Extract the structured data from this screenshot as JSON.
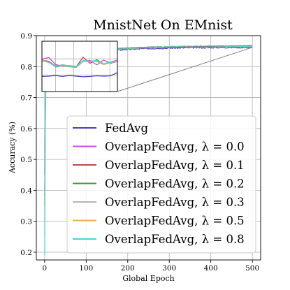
{
  "chart_data": {
    "type": "line",
    "title": "MnistNet On EMnist",
    "xlabel": "Global Epoch",
    "ylabel": "Accuracy (%)",
    "xlim": [
      -20,
      520
    ],
    "ylim": [
      0.175,
      0.9
    ],
    "xticks": [
      0,
      100,
      200,
      300,
      400,
      500
    ],
    "yticks": [
      0.2,
      0.3,
      0.4,
      0.5,
      0.6,
      0.7,
      0.8,
      0.9
    ],
    "grid": true,
    "legend_position": "lower-right",
    "series": [
      {
        "name": "FedAvg",
        "color": "#4b3fb8",
        "start": 0.45,
        "final": 0.862
      },
      {
        "name": "OverlapFedAvg, λ = 0.0",
        "color": "#c050e8",
        "start": 0.4,
        "final": 0.866
      },
      {
        "name": "OverlapFedAvg, λ = 0.1",
        "color": "#b84a48",
        "start": 0.38,
        "final": 0.866
      },
      {
        "name": "OverlapFedAvg, λ = 0.2",
        "color": "#3f9a3f",
        "start": 0.35,
        "final": 0.866
      },
      {
        "name": "OverlapFedAvg, λ = 0.3",
        "color": "#b5b5b5",
        "start": 0.3,
        "final": 0.866
      },
      {
        "name": "OverlapFedAvg, λ = 0.5",
        "color": "#f0b050",
        "start": 0.25,
        "final": 0.866
      },
      {
        "name": "OverlapFedAvg, λ = 0.8",
        "color": "#40d8d8",
        "start": 0.19,
        "final": 0.866
      }
    ],
    "inset": {
      "xlim": [
        0,
        500
      ],
      "ylim": [
        0.7,
        0.86
      ],
      "series": [
        {
          "name": "FedAvg",
          "values": [
            0.748,
            0.749,
            0.751,
            0.748,
            0.751,
            0.749,
            0.747,
            0.748,
            0.75,
            0.749,
            0.75,
            0.76
          ]
        },
        {
          "name": "OverlapFedAvg, λ = 0.0",
          "values": [
            0.803,
            0.808,
            0.786,
            0.78,
            0.782,
            0.78,
            0.796,
            0.799,
            0.785,
            0.8,
            0.79,
            0.796
          ]
        },
        {
          "name": "OverlapFedAvg, λ = 0.1",
          "values": [
            0.8,
            0.796,
            0.781,
            0.785,
            0.782,
            0.779,
            0.809,
            0.79,
            0.801,
            0.788,
            0.794,
            0.8
          ]
        },
        {
          "name": "OverlapFedAvg, λ = 0.2",
          "values": [
            0.797,
            0.795,
            0.778,
            0.782,
            0.779,
            0.777,
            0.796,
            0.796,
            0.796,
            0.786,
            0.792,
            0.798
          ]
        },
        {
          "name": "OverlapFedAvg, λ = 0.3",
          "values": [
            0.798,
            0.794,
            0.78,
            0.784,
            0.781,
            0.779,
            0.798,
            0.794,
            0.798,
            0.787,
            0.793,
            0.799
          ]
        },
        {
          "name": "OverlapFedAvg, λ = 0.5",
          "values": [
            0.799,
            0.792,
            0.779,
            0.783,
            0.78,
            0.778,
            0.797,
            0.795,
            0.797,
            0.786,
            0.792,
            0.797
          ]
        },
        {
          "name": "OverlapFedAvg, λ = 0.8",
          "values": [
            0.801,
            0.793,
            0.779,
            0.785,
            0.781,
            0.778,
            0.799,
            0.796,
            0.799,
            0.788,
            0.793,
            0.796
          ]
        }
      ]
    }
  }
}
